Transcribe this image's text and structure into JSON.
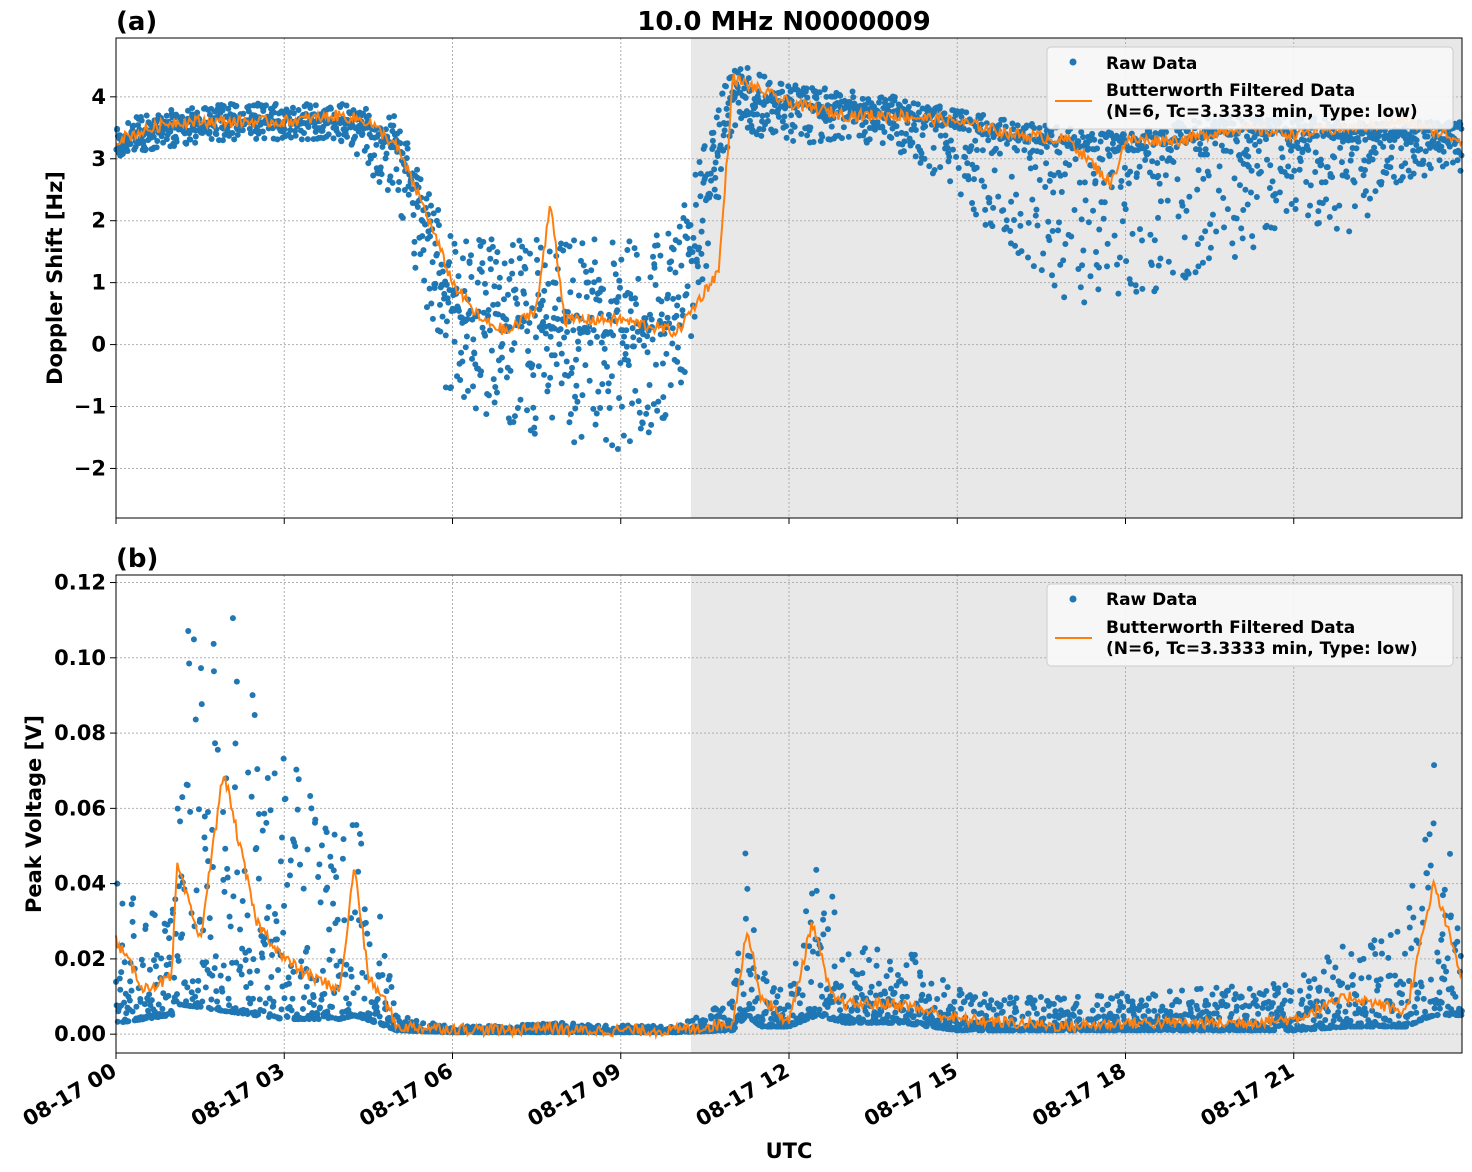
{
  "figure": {
    "title": "10.0 MHz N0000009",
    "xlabel": "UTC"
  },
  "chart_data": [
    {
      "type": "scatter",
      "panel_label": "(a)",
      "title": "10.0 MHz N0000009",
      "ylabel": "Doppler Shift [Hz]",
      "xlabel": "",
      "x_unit": "hours since 08-17 00 UTC (2-hour boundaries)",
      "xlim": [
        "08-17 00",
        "08-18 00"
      ],
      "ylim": [
        -2.8,
        4.95
      ],
      "yticks": [
        -2,
        -1,
        0,
        1,
        2,
        3,
        4
      ],
      "ytick_labels": [
        "−2",
        "−1",
        "0",
        "1",
        "2",
        "3",
        "4"
      ],
      "shaded_region": {
        "start": "08-17 10:15",
        "end": "08-18 00",
        "color": "#e8e8e8"
      },
      "grid": true,
      "legend": {
        "placement": "top-right",
        "entries": [
          "Raw Data",
          "Butterworth Filtered Data\n(N=6, Tc=3.3333 min, Type: low)"
        ]
      },
      "series": [
        {
          "name": "Raw Data",
          "style": "points",
          "color": "#1f77b4",
          "x": [
            "08-17 00",
            "08-17 01",
            "08-17 02",
            "08-17 03",
            "08-17 04",
            "08-17 05",
            "08-17 06",
            "08-17 07",
            "08-17 08",
            "08-17 09",
            "08-17 10",
            "08-17 11",
            "08-17 12",
            "08-17 13",
            "08-17 14",
            "08-17 15",
            "08-17 16",
            "08-17 17",
            "08-17 18",
            "08-17 19",
            "08-17 20",
            "08-17 21",
            "08-17 22",
            "08-17 23"
          ],
          "center": [
            3.3,
            3.5,
            3.6,
            3.6,
            3.6,
            3.3,
            0.5,
            0.4,
            0.2,
            0.2,
            0.5,
            4.0,
            3.9,
            3.8,
            3.7,
            3.5,
            3.3,
            3.2,
            3.1,
            3.3,
            3.4,
            3.4,
            3.3,
            3.3
          ],
          "spread_low": [
            0.3,
            0.3,
            0.3,
            0.3,
            0.3,
            1.0,
            1.6,
            1.7,
            1.9,
            1.9,
            1.7,
            0.5,
            0.7,
            0.5,
            0.6,
            1.0,
            2.0,
            2.5,
            2.6,
            2.3,
            2.0,
            1.5,
            1.5,
            0.6
          ],
          "spread_high": [
            0.3,
            0.3,
            0.3,
            0.3,
            0.3,
            0.4,
            1.2,
            1.3,
            1.5,
            1.5,
            1.4,
            0.6,
            0.3,
            0.3,
            0.3,
            0.3,
            0.3,
            0.3,
            0.3,
            0.3,
            0.3,
            0.3,
            0.3,
            0.3
          ]
        },
        {
          "name": "Butterworth Filtered Data\n(N=6, Tc=3.3333 min, Type: low)",
          "style": "line",
          "color": "#ff7f0e",
          "x": [
            "08-17 00",
            "08-17 01",
            "08-17 02",
            "08-17 03",
            "08-17 04",
            "08-17 04:30",
            "08-17 05",
            "08-17 05:30",
            "08-17 06",
            "08-17 06:30",
            "08-17 07",
            "08-17 07:30",
            "08-17 07:45",
            "08-17 08",
            "08-17 09",
            "08-17 10",
            "08-17 10:45",
            "08-17 11",
            "08-17 11:15",
            "08-17 12",
            "08-17 13",
            "08-17 14",
            "08-17 15",
            "08-17 16",
            "08-17 17",
            "08-17 17:45",
            "08-17 18",
            "08-17 19",
            "08-17 20",
            "08-17 21",
            "08-17 22",
            "08-17 23",
            "08-18 00"
          ],
          "y": [
            3.3,
            3.6,
            3.6,
            3.6,
            3.7,
            3.6,
            3.2,
            2.2,
            1.0,
            0.4,
            0.2,
            0.6,
            2.3,
            0.4,
            0.4,
            0.2,
            1.2,
            4.3,
            4.2,
            3.9,
            3.7,
            3.7,
            3.6,
            3.4,
            3.3,
            2.6,
            3.3,
            3.3,
            3.5,
            3.4,
            3.5,
            3.6,
            3.3
          ]
        }
      ]
    },
    {
      "type": "scatter",
      "panel_label": "(b)",
      "ylabel": "Peak Voltage [V]",
      "xlabel": "UTC",
      "xlim": [
        "08-17 00",
        "08-18 00"
      ],
      "ylim": [
        -0.005,
        0.122
      ],
      "yticks": [
        0.0,
        0.02,
        0.04,
        0.06,
        0.08,
        0.1,
        0.12
      ],
      "ytick_labels": [
        "0.00",
        "0.02",
        "0.04",
        "0.06",
        "0.08",
        "0.10",
        "0.12"
      ],
      "xticks": [
        "08-17 00",
        "08-17 03",
        "08-17 06",
        "08-17 09",
        "08-17 12",
        "08-17 15",
        "08-17 18",
        "08-17 21"
      ],
      "shaded_region": {
        "start": "08-17 10:15",
        "end": "08-18 00",
        "color": "#e8e8e8"
      },
      "grid": true,
      "legend": {
        "placement": "top-right",
        "entries": [
          "Raw Data",
          "Butterworth Filtered Data\n(N=6, Tc=3.3333 min, Type: low)"
        ]
      },
      "series": [
        {
          "name": "Raw Data",
          "style": "points",
          "color": "#1f77b4",
          "x": [
            "08-17 00",
            "08-17 01",
            "08-17 01:05",
            "08-17 02",
            "08-17 02:30",
            "08-17 03",
            "08-17 04",
            "08-17 04:15",
            "08-17 04:50",
            "08-17 05",
            "08-17 06",
            "08-17 08",
            "08-17 10",
            "08-17 11",
            "08-17 11:15",
            "08-17 11:30",
            "08-17 12",
            "08-17 12:30",
            "08-17 13",
            "08-17 14",
            "08-17 15",
            "08-17 16",
            "08-17 17",
            "08-17 19",
            "08-17 21",
            "08-17 22",
            "08-17 23",
            "08-17 23:30",
            "08-18 00"
          ],
          "max": [
            0.044,
            0.03,
            0.109,
            0.116,
            0.093,
            0.08,
            0.05,
            0.073,
            0.02,
            0.005,
            0.002,
            0.003,
            0.002,
            0.01,
            0.061,
            0.02,
            0.01,
            0.059,
            0.022,
            0.025,
            0.012,
            0.01,
            0.01,
            0.012,
            0.014,
            0.025,
            0.03,
            0.072,
            0.03
          ],
          "min": [
            0.003,
            0.005,
            0.008,
            0.006,
            0.005,
            0.004,
            0.004,
            0.005,
            0.002,
            0.001,
            0.0005,
            0.0005,
            0.0005,
            0.001,
            0.005,
            0.002,
            0.002,
            0.005,
            0.003,
            0.003,
            0.001,
            0.001,
            0.001,
            0.001,
            0.001,
            0.002,
            0.002,
            0.005,
            0.005
          ]
        },
        {
          "name": "Butterworth Filtered Data\n(N=6, Tc=3.3333 min, Type: low)",
          "style": "line",
          "color": "#ff7f0e",
          "x": [
            "08-17 00",
            "08-17 00:30",
            "08-17 01",
            "08-17 01:05",
            "08-17 01:30",
            "08-17 01:55",
            "08-17 02:30",
            "08-17 03",
            "08-17 03:30",
            "08-17 04",
            "08-17 04:15",
            "08-17 04:30",
            "08-17 04:50",
            "08-17 05",
            "08-17 06",
            "08-17 07",
            "08-17 07:40",
            "08-17 08",
            "08-17 09",
            "08-17 10",
            "08-17 11",
            "08-17 11:15",
            "08-17 11:30",
            "08-17 12",
            "08-17 12:25",
            "08-17 12:45",
            "08-17 13",
            "08-17 14",
            "08-17 15",
            "08-17 16",
            "08-17 17",
            "08-17 18",
            "08-17 19",
            "08-17 20",
            "08-17 21",
            "08-17 22",
            "08-17 23",
            "08-17 23:30",
            "08-18 00"
          ],
          "y": [
            0.025,
            0.012,
            0.015,
            0.045,
            0.025,
            0.07,
            0.03,
            0.02,
            0.015,
            0.012,
            0.045,
            0.015,
            0.008,
            0.002,
            0.0015,
            0.001,
            0.002,
            0.001,
            0.001,
            0.001,
            0.003,
            0.028,
            0.01,
            0.003,
            0.03,
            0.01,
            0.008,
            0.008,
            0.004,
            0.003,
            0.002,
            0.003,
            0.003,
            0.003,
            0.004,
            0.01,
            0.006,
            0.04,
            0.015
          ]
        }
      ]
    }
  ]
}
